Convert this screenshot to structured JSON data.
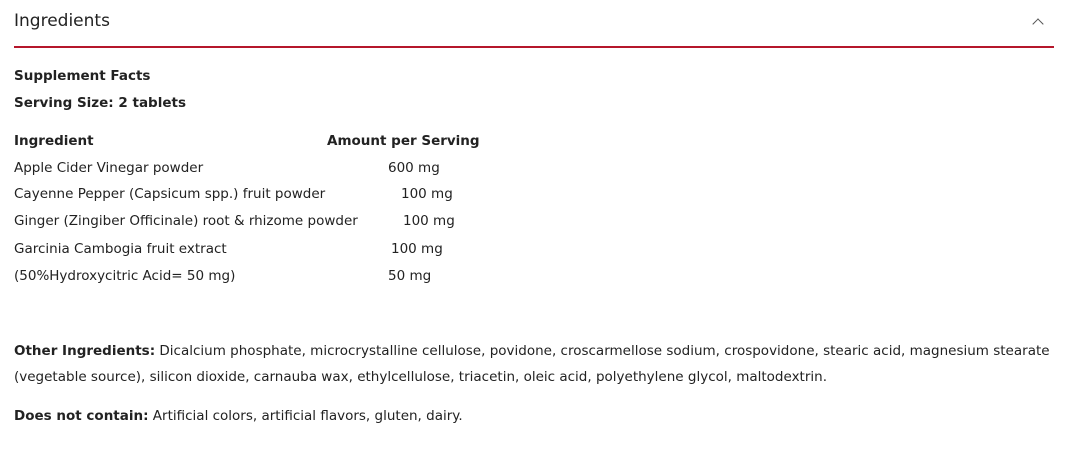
{
  "section": {
    "title": "Ingredients",
    "toggle_icon": "chevron-up-icon",
    "accent": "#b5162b"
  },
  "facts": {
    "title": "Supplement Facts",
    "serving": "Serving Size: 2 tablets"
  },
  "table": {
    "headers": [
      "Ingredient",
      "Amount per Serving"
    ],
    "rows": [
      {
        "name": "Apple Cider Vinegar powder",
        "amount": "600 mg"
      },
      {
        "name": "Cayenne Pepper (Capsicum spp.) fruit powder",
        "amount": "100 mg"
      },
      {
        "name": "Ginger (Zingiber Officinale) root & rhizome powder",
        "amount": "100 mg"
      },
      {
        "name": "Garcinia Cambogia fruit extract",
        "amount": "100 mg"
      },
      {
        "name": "(50%Hydroxycitric Acid= 50 mg)",
        "amount": "50 mg"
      }
    ]
  },
  "other": {
    "label": "Other Ingredients:",
    "text": " Dicalcium phosphate, microcrystalline cellulose, povidone, croscarmellose sodium, crospovidone, stearic acid, magnesium stearate (vegetable source), silicon dioxide, carnauba wax, ethylcellulose, triacetin, oleic acid, polyethylene glycol, maltodextrin."
  },
  "free": {
    "label": "Does not contain:",
    "text": " Artificial colors, artificial flavors, gluten, dairy."
  }
}
